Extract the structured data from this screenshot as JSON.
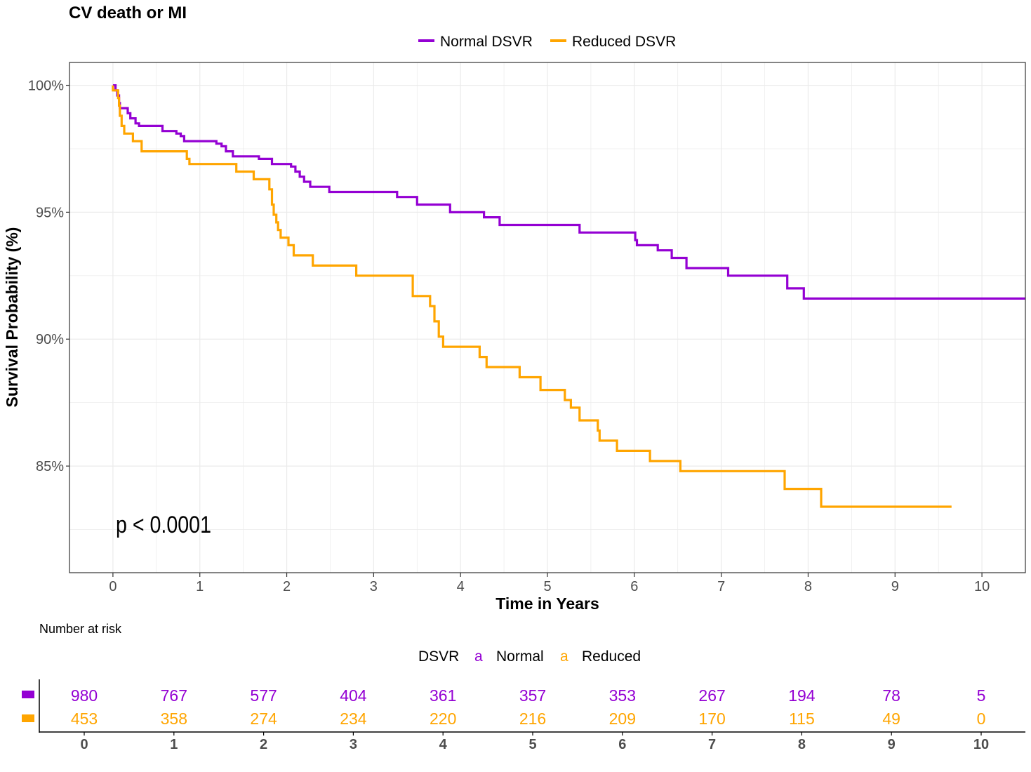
{
  "chart_data": {
    "type": "line",
    "subtype": "kaplan-meier step curves",
    "title": "CV death or MI",
    "xlabel": "Time in Years",
    "ylabel": "Survival Probability (%)",
    "xlim": [
      -0.5,
      10.5
    ],
    "ylim": [
      80.8,
      100.9
    ],
    "x_ticks": [
      0,
      1,
      2,
      3,
      4,
      5,
      6,
      7,
      8,
      9,
      10
    ],
    "y_ticks": [
      85,
      90,
      95,
      100
    ],
    "y_tick_labels": [
      "85%",
      "90%",
      "95%",
      "100%"
    ],
    "grid": true,
    "legend_position": "top",
    "annotation": "p < 0.0001",
    "series": [
      {
        "name": "Normal DSVR",
        "color": "#9400D3",
        "steps": [
          [
            0,
            100
          ],
          [
            0.03,
            99.8
          ],
          [
            0.05,
            99.6
          ],
          [
            0.07,
            99.3
          ],
          [
            0.08,
            99.1
          ],
          [
            0.17,
            98.9
          ],
          [
            0.2,
            98.7
          ],
          [
            0.26,
            98.5
          ],
          [
            0.3,
            98.4
          ],
          [
            0.57,
            98.2
          ],
          [
            0.73,
            98.1
          ],
          [
            0.78,
            98.0
          ],
          [
            0.82,
            97.8
          ],
          [
            1.19,
            97.7
          ],
          [
            1.25,
            97.6
          ],
          [
            1.3,
            97.4
          ],
          [
            1.38,
            97.2
          ],
          [
            1.68,
            97.1
          ],
          [
            1.83,
            96.9
          ],
          [
            2.05,
            96.8
          ],
          [
            2.1,
            96.6
          ],
          [
            2.15,
            96.4
          ],
          [
            2.2,
            96.2
          ],
          [
            2.27,
            96.0
          ],
          [
            2.49,
            95.8
          ],
          [
            3.27,
            95.6
          ],
          [
            3.5,
            95.3
          ],
          [
            3.88,
            95.0
          ],
          [
            4.27,
            94.8
          ],
          [
            4.45,
            94.5
          ],
          [
            5.37,
            94.2
          ],
          [
            6.01,
            93.9
          ],
          [
            6.03,
            93.7
          ],
          [
            6.27,
            93.5
          ],
          [
            6.43,
            93.2
          ],
          [
            6.6,
            92.8
          ],
          [
            7.08,
            92.5
          ],
          [
            7.76,
            92.0
          ],
          [
            7.95,
            91.6
          ],
          [
            10.5,
            91.6
          ]
        ]
      },
      {
        "name": "Reduced DSVR",
        "color": "#FFA500",
        "steps": [
          [
            0,
            100
          ],
          [
            0,
            99.8
          ],
          [
            0.06,
            99.5
          ],
          [
            0.07,
            99.2
          ],
          [
            0.08,
            98.8
          ],
          [
            0.1,
            98.4
          ],
          [
            0.13,
            98.1
          ],
          [
            0.23,
            97.8
          ],
          [
            0.33,
            97.4
          ],
          [
            0.85,
            97.1
          ],
          [
            0.88,
            96.9
          ],
          [
            1.42,
            96.6
          ],
          [
            1.62,
            96.3
          ],
          [
            1.8,
            95.9
          ],
          [
            1.83,
            95.3
          ],
          [
            1.85,
            94.9
          ],
          [
            1.88,
            94.6
          ],
          [
            1.9,
            94.3
          ],
          [
            1.93,
            94.0
          ],
          [
            2.02,
            93.7
          ],
          [
            2.08,
            93.3
          ],
          [
            2.3,
            92.9
          ],
          [
            2.8,
            92.5
          ],
          [
            3.45,
            91.7
          ],
          [
            3.65,
            91.3
          ],
          [
            3.7,
            90.7
          ],
          [
            3.75,
            90.1
          ],
          [
            3.8,
            89.7
          ],
          [
            4.22,
            89.3
          ],
          [
            4.3,
            88.9
          ],
          [
            4.68,
            88.5
          ],
          [
            4.92,
            88.0
          ],
          [
            5.2,
            87.6
          ],
          [
            5.27,
            87.3
          ],
          [
            5.37,
            86.8
          ],
          [
            5.58,
            86.4
          ],
          [
            5.6,
            86.0
          ],
          [
            5.8,
            85.6
          ],
          [
            6.18,
            85.2
          ],
          [
            6.53,
            84.8
          ],
          [
            7.73,
            84.1
          ],
          [
            8.15,
            83.4
          ],
          [
            9.65,
            83.4
          ]
        ]
      }
    ],
    "risk_table": {
      "title": "Number at risk",
      "legend_title": "DSVR",
      "legend_glyph": "a",
      "time_points": [
        0,
        1,
        2,
        3,
        4,
        5,
        6,
        7,
        8,
        9,
        10
      ],
      "groups": [
        {
          "label": "Normal",
          "color": "#9400D3",
          "counts": [
            980,
            767,
            577,
            404,
            361,
            357,
            353,
            267,
            194,
            78,
            5
          ]
        },
        {
          "label": "Reduced",
          "color": "#FFA500",
          "counts": [
            453,
            358,
            274,
            234,
            220,
            216,
            209,
            170,
            115,
            49,
            0
          ]
        }
      ]
    }
  }
}
